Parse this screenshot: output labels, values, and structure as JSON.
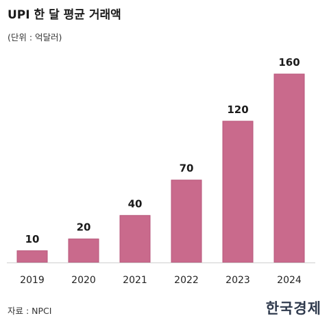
{
  "header": {
    "title": "UPI 한 달 평균 거래액",
    "unit": "(단위 : 억달러)"
  },
  "footer": {
    "source": "자료 : NPCI",
    "logo_text": "한국경제"
  },
  "colors": {
    "bar": "#c96a8c",
    "bar_stroke": "#b8577b",
    "axis": "#cfcfcf"
  },
  "chart_data": {
    "type": "bar",
    "categories": [
      "2019",
      "2020",
      "2021",
      "2022",
      "2023",
      "2024"
    ],
    "values": [
      10,
      20,
      40,
      70,
      120,
      160
    ],
    "title": "UPI 한 달 평균 거래액",
    "ylabel": "",
    "xlabel": "",
    "unit": "(단위 : 억달러)",
    "ylim": [
      0,
      160
    ],
    "grid": false,
    "data_labels": [
      "10",
      "20",
      "40",
      "70",
      "120",
      "160"
    ]
  }
}
